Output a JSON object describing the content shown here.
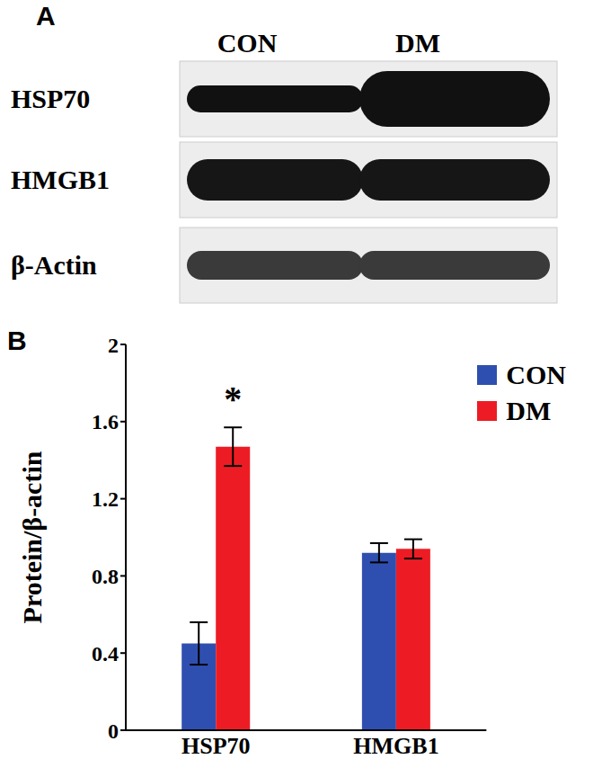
{
  "panel_a": {
    "label": "A",
    "lanes": [
      "CON",
      "DM"
    ],
    "rows": [
      "HSP70",
      "HMGB1",
      "β-Actin"
    ]
  },
  "chart_data": {
    "type": "bar",
    "title": "B",
    "ylabel": "Protein/β-actin",
    "categories": [
      "HSP70",
      "HMGB1"
    ],
    "series": [
      {
        "name": "CON",
        "color": "#2f4fb0",
        "values": [
          0.45,
          0.92
        ],
        "errors": [
          0.11,
          0.05
        ]
      },
      {
        "name": "DM",
        "color": "#ed1c24",
        "values": [
          1.47,
          0.94
        ],
        "errors": [
          0.1,
          0.05
        ]
      }
    ],
    "ylim": [
      0,
      2
    ],
    "yticks": [
      0,
      0.4,
      0.8,
      1.2,
      1.6,
      2
    ],
    "legend": "upper right",
    "annotations": [
      {
        "text": "*",
        "category": "HSP70",
        "series": "DM"
      }
    ]
  }
}
